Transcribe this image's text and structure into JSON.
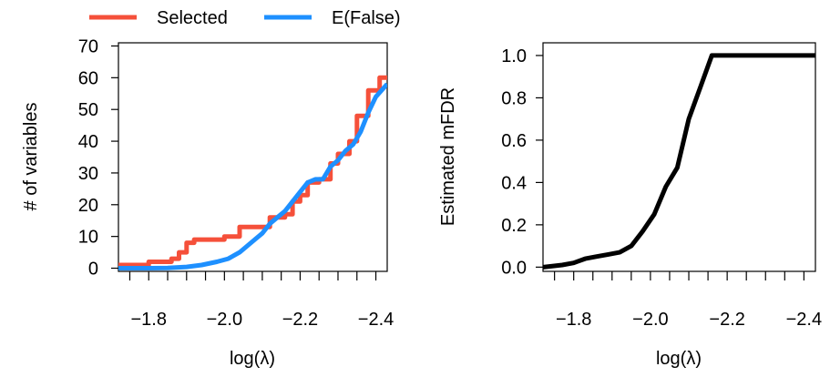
{
  "colors": {
    "selected": "#F5503A",
    "efalse": "#1E90FF",
    "mfdr": "#000000"
  },
  "legend": {
    "items": [
      {
        "label": "Selected",
        "color_key": "selected"
      },
      {
        "label": "E(False)",
        "color_key": "efalse"
      }
    ]
  },
  "chart_data": [
    {
      "type": "line",
      "xlabel": "log(λ)",
      "ylabel": "# of variables",
      "xlim": [
        -1.72,
        -2.43
      ],
      "ylim": [
        -1,
        71
      ],
      "xticks": [
        -1.8,
        -2.0,
        -2.2,
        -2.4
      ],
      "xtick_labels": [
        "−1.8",
        "−2.0",
        "−2.2",
        "−2.4"
      ],
      "yticks": [
        0,
        10,
        20,
        30,
        40,
        50,
        60,
        70
      ],
      "ytick_labels": [
        "0",
        "10",
        "20",
        "30",
        "40",
        "50",
        "60",
        "70"
      ],
      "series": [
        {
          "name": "Selected",
          "color_key": "selected",
          "step": true,
          "x": [
            -1.72,
            -1.76,
            -1.8,
            -1.83,
            -1.86,
            -1.88,
            -1.9,
            -1.92,
            -1.96,
            -2.0,
            -2.04,
            -2.09,
            -2.12,
            -2.16,
            -2.18,
            -2.2,
            -2.22,
            -2.25,
            -2.28,
            -2.3,
            -2.33,
            -2.35,
            -2.38,
            -2.41,
            -2.43
          ],
          "values": [
            1,
            1,
            2,
            2,
            3,
            5,
            8,
            9,
            9,
            10,
            13,
            13,
            16,
            17,
            21,
            23,
            27,
            28,
            33,
            36,
            40,
            48,
            56,
            60,
            60
          ]
        },
        {
          "name": "E(False)",
          "color_key": "efalse",
          "step": false,
          "x": [
            -1.72,
            -1.8,
            -1.85,
            -1.9,
            -1.94,
            -1.98,
            -2.01,
            -2.04,
            -2.06,
            -2.08,
            -2.1,
            -2.12,
            -2.14,
            -2.16,
            -2.18,
            -2.2,
            -2.22,
            -2.24,
            -2.26,
            -2.28,
            -2.3,
            -2.32,
            -2.34,
            -2.36,
            -2.38,
            -2.4,
            -2.43
          ],
          "values": [
            0,
            0,
            0.1,
            0.4,
            1,
            2,
            3,
            5,
            7,
            9,
            11,
            14,
            16,
            18,
            21,
            24,
            27,
            28,
            28,
            32,
            34,
            37,
            39,
            43,
            49,
            54,
            58
          ]
        }
      ]
    },
    {
      "type": "line",
      "xlabel": "log(λ)",
      "ylabel": "Estimated mFDR",
      "xlim": [
        -1.72,
        -2.43
      ],
      "ylim": [
        -0.02,
        1.06
      ],
      "xticks": [
        -1.8,
        -2.0,
        -2.2,
        -2.4
      ],
      "xtick_labels": [
        "−1.8",
        "−2.0",
        "−2.2",
        "−2.4"
      ],
      "yticks": [
        0.0,
        0.2,
        0.4,
        0.6,
        0.8,
        1.0
      ],
      "ytick_labels": [
        "0.0",
        "0.2",
        "0.4",
        "0.6",
        "0.8",
        "1.0"
      ],
      "series": [
        {
          "name": "mFDR",
          "color_key": "mfdr",
          "step": false,
          "x": [
            -1.72,
            -1.77,
            -1.8,
            -1.83,
            -1.86,
            -1.89,
            -1.92,
            -1.95,
            -1.98,
            -2.01,
            -2.04,
            -2.07,
            -2.1,
            -2.13,
            -2.16,
            -2.2,
            -2.3,
            -2.43
          ],
          "values": [
            0.0,
            0.01,
            0.02,
            0.04,
            0.05,
            0.06,
            0.07,
            0.1,
            0.17,
            0.25,
            0.38,
            0.47,
            0.7,
            0.85,
            1.0,
            1.0,
            1.0,
            1.0
          ]
        }
      ]
    }
  ]
}
